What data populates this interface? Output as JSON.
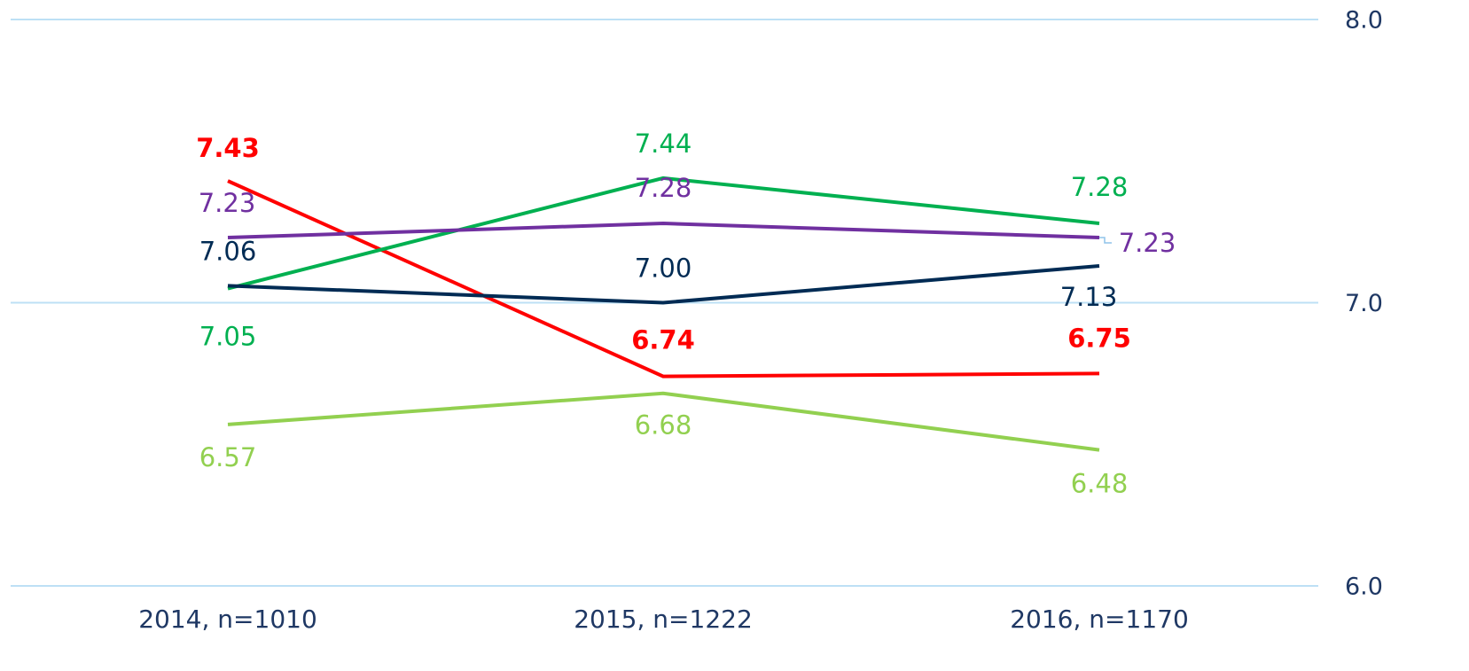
{
  "chart_data": {
    "type": "line",
    "categories": [
      "2014, n=1010",
      "2015, n=1222",
      "2016, n=1170"
    ],
    "series": [
      {
        "color": "#ff0000",
        "values": [
          7.43,
          6.74,
          6.75
        ]
      },
      {
        "color": "#00b050",
        "values": [
          7.05,
          7.44,
          7.28
        ]
      },
      {
        "color": "#7030a0",
        "values": [
          7.23,
          7.28,
          7.23
        ]
      },
      {
        "color": "#002b54",
        "values": [
          7.06,
          7.0,
          7.13
        ],
        "value_labels": [
          "7.06",
          "7.00",
          "7.13"
        ]
      },
      {
        "color": "#92d050",
        "values": [
          6.57,
          6.68,
          6.48
        ]
      }
    ],
    "ylim": [
      6,
      8
    ],
    "yticks": [
      {
        "value": 6,
        "label": "6.0"
      },
      {
        "value": 7,
        "label": "7.0"
      },
      {
        "value": 8,
        "label": "8.0"
      }
    ],
    "grid": true
  }
}
